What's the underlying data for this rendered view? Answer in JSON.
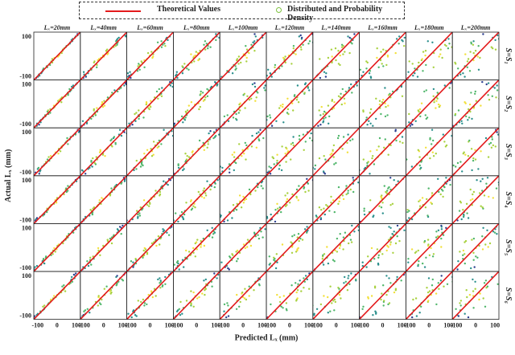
{
  "legend": {
    "theoretical_label": "Theoretical Values",
    "density_label": "Distributed and Probability Density",
    "line_color": "#e31a1c",
    "marker_color": "#7fc241"
  },
  "chart_data": {
    "type": "scatter",
    "layout": "grid",
    "xlabel": "Predicted Lₓ (mm)",
    "ylabel": "Actual Lₓ (mm)",
    "column_titles": [
      "Lₓ=20mm",
      "Lₓ=40mm",
      "Lₓ=60mm",
      "Lₓ=80mm",
      "Lₓ=100mm",
      "Lₓ=120mm",
      "Lₓ=140mm",
      "Lₓ=160mm",
      "Lₓ=180mm",
      "Lₓ=200mm"
    ],
    "row_titles": [
      "S=S₁",
      "S=S₂",
      "S=S₃",
      "S=S₄",
      "S=S₅",
      "S=S₆"
    ],
    "x_ticks": [
      "-100",
      "0",
      "100"
    ],
    "y_ticks": [
      "100",
      "-100"
    ],
    "xlim": [
      -120,
      120
    ],
    "ylim": [
      -120,
      120
    ],
    "reference_line": {
      "name": "Theoretical Values",
      "x": [
        -120,
        120
      ],
      "y": [
        -120,
        120
      ]
    },
    "colormap": [
      "#2c3e8f",
      "#2a8f8c",
      "#4fb66a",
      "#a8d13f",
      "#f2e03a"
    ],
    "grid": false,
    "legend_position": "top"
  }
}
